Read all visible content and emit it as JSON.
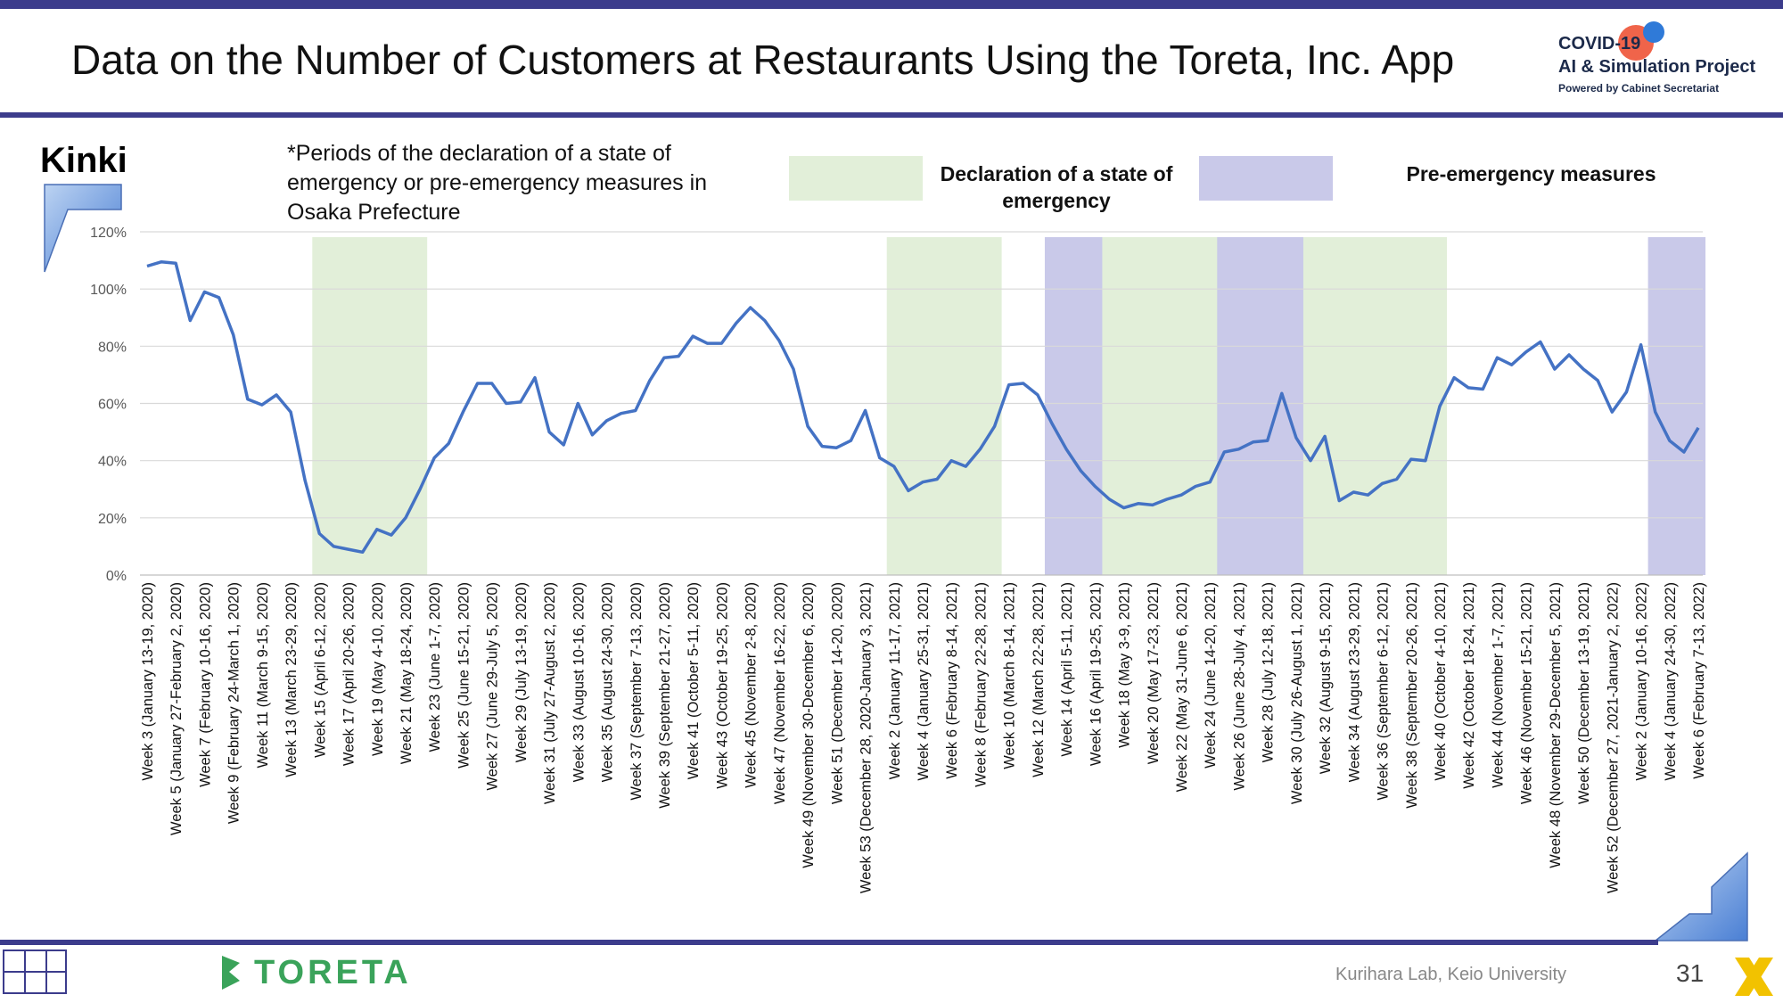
{
  "header": {
    "title": "Data on the Number of Customers at Restaurants Using the Toreta, Inc. App",
    "logo_line1": "COVID-19",
    "logo_line2": "AI & Simulation Project",
    "logo_line3": "Powered by Cabinet Secretariat"
  },
  "region": "Kinki",
  "note": "*Periods of the declaration of a state of emergency or pre-emergency measures in Osaka Prefecture",
  "legend": {
    "emergency": "Declaration of a state of emergency",
    "pre_emergency": "Pre-emergency measures"
  },
  "footer": {
    "lab": "Kurihara Lab, Keio University",
    "page": "31",
    "toreta": "TORETA"
  },
  "colors": {
    "line": "#4472c4",
    "emergency_band": "#e2efd9",
    "pre_emergency_band": "#c9c9e9",
    "brand_navy": "#3c3c8c"
  },
  "chart_data": {
    "type": "line",
    "ylim": [
      0,
      120
    ],
    "yticks": [
      "0%",
      "20%",
      "40%",
      "60%",
      "80%",
      "100%",
      "120%"
    ],
    "y_unit": "percent",
    "grid": "horizontal",
    "x_labels": [
      "Week 3 (January 13-19, 2020)",
      "Week 5 (January 27-February 2, 2020)",
      "Week 7 (February 10-16, 2020)",
      "Week 9 (February 24-March 1, 2020)",
      "Week 11 (March 9-15, 2020)",
      "Week 13 (March 23-29, 2020)",
      "Week 15 (April 6-12, 2020)",
      "Week 17 (April 20-26, 2020)",
      "Week 19 (May 4-10, 2020)",
      "Week 21 (May 18-24, 2020)",
      "Week 23 (June 1-7, 2020)",
      "Week 25 (June 15-21, 2020)",
      "Week 27 (June 29-July 5, 2020)",
      "Week 29 (July 13-19, 2020)",
      "Week 31 (July 27-August 2, 2020)",
      "Week 33 (August 10-16, 2020)",
      "Week 35 (August 24-30, 2020)",
      "Week 37 (September 7-13, 2020)",
      "Week 39 (September 21-27, 2020)",
      "Week 41 (October 5-11, 2020)",
      "Week 43 (October 19-25, 2020)",
      "Week 45 (November 2-8, 2020)",
      "Week 47 (November 16-22, 2020)",
      "Week 49 (November 30-December 6, 2020)",
      "Week 51 (December 14-20, 2020)",
      "Week 53 (December 28, 2020-January 3, 2021)",
      "Week 2 (January 11-17, 2021)",
      "Week 4 (January 25-31, 2021)",
      "Week 6 (February 8-14, 2021)",
      "Week 8 (February 22-28, 2021)",
      "Week 10 (March 8-14, 2021)",
      "Week 12 (March 22-28, 2021)",
      "Week 14 (April 5-11, 2021)",
      "Week 16 (April 19-25, 2021)",
      "Week 18 (May 3-9, 2021)",
      "Week 20 (May 17-23, 2021)",
      "Week 22 (May 31-June 6, 2021)",
      "Week 24 (June 14-20, 2021)",
      "Week 26 (June 28-July 4, 2021)",
      "Week 28 (July 12-18, 2021)",
      "Week 30 (July 26-August 1, 2021)",
      "Week 32 (August 9-15, 2021)",
      "Week 34 (August 23-29, 2021)",
      "Week 36 (September 6-12, 2021)",
      "Week 38 (September 20-26, 2021)",
      "Week 40 (October 4-10, 2021)",
      "Week 42 (October 18-24, 2021)",
      "Week 44 (November 1-7, 2021)",
      "Week 46 (November 15-21, 2021)",
      "Week 48 (November 29-December 5, 2021)",
      "Week 50 (December 13-19, 2021)",
      "Week 52 (December 27, 2021-January 2, 2022)",
      "Week 2 (January 10-16, 2022)",
      "Week 4 (January 24-30, 2022)",
      "Week 6 (February 7-13, 2022)"
    ],
    "series": [
      {
        "values": [
          108,
          109.5,
          109,
          89,
          99,
          97,
          84,
          61.5,
          59.5,
          63,
          57,
          33,
          14.5,
          10,
          9,
          8,
          16,
          14,
          20,
          30,
          41,
          46,
          57,
          67,
          67,
          60,
          60.5,
          69,
          50,
          45.5,
          60,
          49,
          54,
          56.5,
          57.5,
          68,
          76,
          76.5,
          83.5,
          81,
          81,
          88,
          93.5,
          89,
          82,
          72,
          52,
          45,
          44.5,
          47,
          57.5,
          41,
          38,
          29.5,
          32.5,
          33.5,
          40,
          38,
          44,
          52,
          66.5,
          67,
          63,
          53,
          44,
          36.5,
          31,
          26.5,
          23.5,
          25,
          24.5,
          26.5,
          28,
          31,
          32.5,
          43,
          44,
          46.5,
          47,
          63.5,
          48,
          40,
          48.5,
          26,
          29,
          28,
          32,
          33.5,
          40.5,
          40,
          59,
          69,
          65.5,
          65,
          76,
          73.5,
          78,
          81.5,
          72,
          77,
          72,
          68,
          57,
          64,
          80.5,
          57,
          47,
          43,
          51.5
        ]
      }
    ],
    "bands": [
      {
        "type": "emergency",
        "from_week_index": 12,
        "to_week_index": 19
      },
      {
        "type": "emergency",
        "from_week_index": 52,
        "to_week_index": 59
      },
      {
        "type": "pre_emergency",
        "from_week_index": 63,
        "to_week_index": 67
      },
      {
        "type": "emergency",
        "from_week_index": 67,
        "to_week_index": 75
      },
      {
        "type": "pre_emergency",
        "from_week_index": 75,
        "to_week_index": 81
      },
      {
        "type": "emergency",
        "from_week_index": 81,
        "to_week_index": 90
      },
      {
        "type": "pre_emergency",
        "from_week_index": 105,
        "to_week_index": 108
      }
    ]
  }
}
